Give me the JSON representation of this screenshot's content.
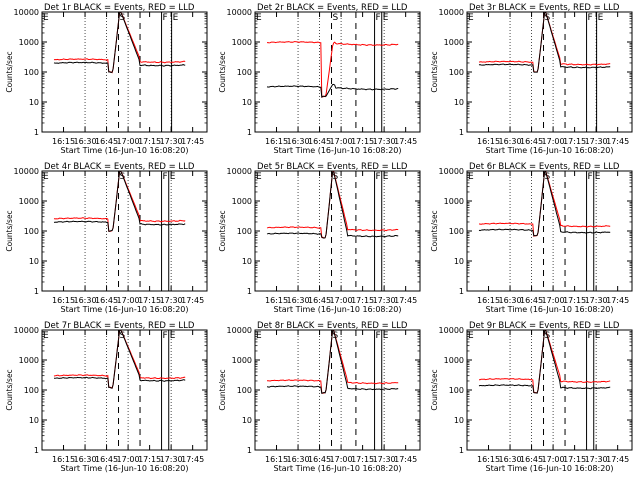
{
  "common": {
    "type": "line",
    "ylabel": "Counts/sec",
    "xlabel": "Start Time (16-Jun-10 16:08:20)",
    "ylim": [
      1,
      10000
    ],
    "yscale": "log",
    "ytick_values": [
      1,
      10,
      100,
      1000,
      10000
    ],
    "ytick_labels": [
      "1",
      "10",
      "100",
      "1000",
      "10000"
    ],
    "xlim_minutes": [
      -8.33,
      106.67
    ],
    "xtick_values": [
      6.67,
      21.67,
      36.67,
      51.67,
      66.67,
      81.67,
      96.67
    ],
    "xtick_labels": [
      "16:15",
      "16:30",
      "16:45",
      "17:00",
      "17:15",
      "17:30",
      "17:45"
    ],
    "dotted_lines_minutes": [
      21.67,
      36.67,
      51.67,
      81.67
    ],
    "series_names": [
      "Events",
      "LLD"
    ],
    "series_colors": [
      "#000000",
      "#ff0000"
    ],
    "flare_window_minutes": [
      38,
      46
    ]
  },
  "chart_data": [
    {
      "title": "Det 1r BLACK = Events, RED = LLD",
      "markers": [
        {
          "label": "S",
          "t": 45,
          "style": "dashed"
        },
        {
          "label": "",
          "t": 60,
          "style": "dashed"
        },
        {
          "label": "F",
          "t": 75,
          "style": "solid"
        },
        {
          "label": "E",
          "t": 82,
          "style": "solid"
        }
      ],
      "events_base": 185,
      "lld_base": 240,
      "pre_dip": 100,
      "peak_events": 12000,
      "peak_lld": 12000,
      "recovery_end": 60
    },
    {
      "title": "Det 2r BLACK = Events, RED = LLD",
      "markers": [
        {
          "label": "S",
          "t": 45,
          "style": "dashed"
        },
        {
          "label": "",
          "t": 62,
          "style": "dashed"
        },
        {
          "label": "F",
          "t": 75,
          "style": "solid"
        },
        {
          "label": "E",
          "t": 80,
          "style": "solid"
        }
      ],
      "events_base": 30,
      "lld_base": 900,
      "pre_dip": 15,
      "peak_events": 40,
      "peak_lld": 900,
      "recovery_end": 48
    },
    {
      "title": "Det 3r BLACK = Events, RED = LLD",
      "markers": [
        {
          "label": "S",
          "t": 45,
          "style": "dashed"
        },
        {
          "label": "",
          "t": 60,
          "style": "dashed"
        },
        {
          "label": "F",
          "t": 75,
          "style": "solid"
        },
        {
          "label": "E",
          "t": 82,
          "style": "solid"
        }
      ],
      "events_base": 160,
      "lld_base": 200,
      "pre_dip": 100,
      "peak_events": 12000,
      "peak_lld": 12000,
      "recovery_end": 57
    },
    {
      "title": "Det 4r BLACK = Events, RED = LLD",
      "markers": [
        {
          "label": "S",
          "t": 45,
          "style": "dashed"
        },
        {
          "label": "",
          "t": 60,
          "style": "dashed"
        },
        {
          "label": "F",
          "t": 75,
          "style": "solid"
        },
        {
          "label": "E",
          "t": 80,
          "style": "solid"
        }
      ],
      "events_base": 185,
      "lld_base": 240,
      "pre_dip": 100,
      "peak_events": 12000,
      "peak_lld": 12000,
      "recovery_end": 60
    },
    {
      "title": "Det 5r BLACK = Events, RED = LLD",
      "markers": [
        {
          "label": "S",
          "t": 45,
          "style": "dashed"
        },
        {
          "label": "",
          "t": 62,
          "style": "dashed"
        },
        {
          "label": "F",
          "t": 75,
          "style": "solid"
        },
        {
          "label": "E",
          "t": 80,
          "style": "solid"
        }
      ],
      "events_base": 75,
      "lld_base": 120,
      "pre_dip": 60,
      "peak_events": 12000,
      "peak_lld": 12000,
      "recovery_end": 56
    },
    {
      "title": "Det 6r BLACK = Events, RED = LLD",
      "markers": [
        {
          "label": "S",
          "t": 45,
          "style": "dashed"
        },
        {
          "label": "",
          "t": 60,
          "style": "dashed"
        },
        {
          "label": "F",
          "t": 75,
          "style": "solid"
        },
        {
          "label": "E",
          "t": 80,
          "style": "solid"
        }
      ],
      "events_base": 100,
      "lld_base": 160,
      "pre_dip": 70,
      "peak_events": 12000,
      "peak_lld": 12000,
      "recovery_end": 57
    },
    {
      "title": "Det 7r BLACK = Events, RED = LLD",
      "markers": [
        {
          "label": "S",
          "t": 45,
          "style": "dashed"
        },
        {
          "label": "",
          "t": 60,
          "style": "dashed"
        },
        {
          "label": "F",
          "t": 75,
          "style": "solid"
        },
        {
          "label": "E",
          "t": 80,
          "style": "solid"
        }
      ],
      "events_base": 230,
      "lld_base": 280,
      "pre_dip": 120,
      "peak_events": 12000,
      "peak_lld": 12000,
      "recovery_end": 60
    },
    {
      "title": "Det 8r BLACK = Events, RED = LLD",
      "markers": [
        {
          "label": "S",
          "t": 45,
          "style": "dashed"
        },
        {
          "label": "",
          "t": 62,
          "style": "dashed"
        },
        {
          "label": "F",
          "t": 75,
          "style": "solid"
        },
        {
          "label": "E",
          "t": 80,
          "style": "solid"
        }
      ],
      "events_base": 120,
      "lld_base": 190,
      "pre_dip": 80,
      "peak_events": 12000,
      "peak_lld": 12000,
      "recovery_end": 56
    },
    {
      "title": "Det 9r BLACK = Events, RED = LLD",
      "markers": [
        {
          "label": "S",
          "t": 45,
          "style": "dashed"
        },
        {
          "label": "",
          "t": 60,
          "style": "dashed"
        },
        {
          "label": "F",
          "t": 75,
          "style": "solid"
        },
        {
          "label": "E",
          "t": 80,
          "style": "solid"
        }
      ],
      "events_base": 130,
      "lld_base": 210,
      "pre_dip": 80,
      "peak_events": 12000,
      "peak_lld": 12000,
      "recovery_end": 57
    }
  ]
}
